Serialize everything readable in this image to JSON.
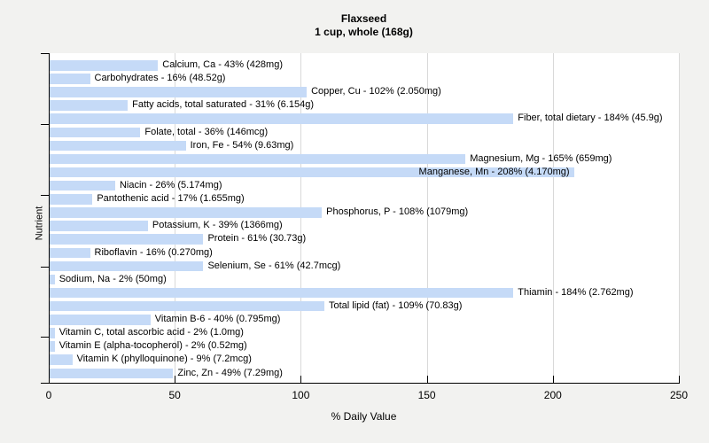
{
  "title": "Flaxseed",
  "subtitle": "1 cup, whole (168g)",
  "xlabel": "% Daily Value",
  "ylabel": "Nutrient",
  "colors": {
    "bar_fill": "#c5daf7",
    "background": "#f2f2f0",
    "plot_background": "#ffffff",
    "gridline": "#d9d9d9",
    "axis": "#000000"
  },
  "chart_data": {
    "type": "bar",
    "orientation": "horizontal",
    "title": "Flaxseed",
    "subtitle": "1 cup, whole (168g)",
    "xlabel": "% Daily Value",
    "ylabel": "Nutrient",
    "xlim": [
      0,
      250
    ],
    "x_ticks": [
      0,
      50,
      100,
      150,
      200,
      250
    ],
    "grid": true,
    "legend": false,
    "categories": [
      "Calcium, Ca",
      "Carbohydrates",
      "Copper, Cu",
      "Fatty acids, total saturated",
      "Fiber, total dietary",
      "Folate, total",
      "Iron, Fe",
      "Magnesium, Mg",
      "Manganese, Mn",
      "Niacin",
      "Pantothenic acid",
      "Phosphorus, P",
      "Potassium, K",
      "Protein",
      "Riboflavin",
      "Selenium, Se",
      "Sodium, Na",
      "Thiamin",
      "Total lipid (fat)",
      "Vitamin B-6",
      "Vitamin C, total ascorbic acid",
      "Vitamin E (alpha-tocopherol)",
      "Vitamin K (phylloquinone)",
      "Zinc, Zn"
    ],
    "values": [
      43,
      16,
      102,
      31,
      184,
      36,
      54,
      165,
      208,
      26,
      17,
      108,
      39,
      61,
      16,
      61,
      2,
      184,
      109,
      40,
      2,
      2,
      9,
      49
    ],
    "amounts": [
      "428mg",
      "48.52g",
      "2.050mg",
      "6.154g",
      "45.9g",
      "146mcg",
      "9.63mg",
      "659mg",
      "4.170mg",
      "5.174mg",
      "1.655mg",
      "1079mg",
      "1366mg",
      "30.73g",
      "0.270mg",
      "42.7mcg",
      "50mg",
      "2.762mg",
      "70.83g",
      "0.795mg",
      "1.0mg",
      "0.52mg",
      "7.2mcg",
      "7.29mg"
    ],
    "display_labels": [
      "Calcium, Ca - 43% (428mg)",
      "Carbohydrates - 16% (48.52g)",
      "Copper, Cu - 102% (2.050mg)",
      "Fatty acids, total saturated - 31% (6.154g)",
      "Fiber, total dietary - 184% (45.9g)",
      "Folate, total - 36% (146mcg)",
      "Iron, Fe - 54% (9.63mg)",
      "Magnesium, Mg - 165% (659mg)",
      "Manganese, Mn - 208% (4.170mg)",
      "Niacin - 26% (5.174mg)",
      "Pantothenic acid - 17% (1.655mg)",
      "Phosphorus, P - 108% (1079mg)",
      "Potassium, K - 39% (1366mg)",
      "Protein - 61% (30.73g)",
      "Riboflavin - 16% (0.270mg)",
      "Selenium, Se - 61% (42.7mcg)",
      "Sodium, Na - 2% (50mg)",
      "Thiamin - 184% (2.762mg)",
      "Total lipid (fat) - 109% (70.83g)",
      "Vitamin B-6 - 40% (0.795mg)",
      "Vitamin C, total ascorbic acid - 2% (1.0mg)",
      "Vitamin E (alpha-tocopherol) - 2% (0.52mg)",
      "Vitamin K (phylloquinone) - 9% (7.2mcg)",
      "Zinc, Zn - 49% (7.29mg)"
    ]
  }
}
